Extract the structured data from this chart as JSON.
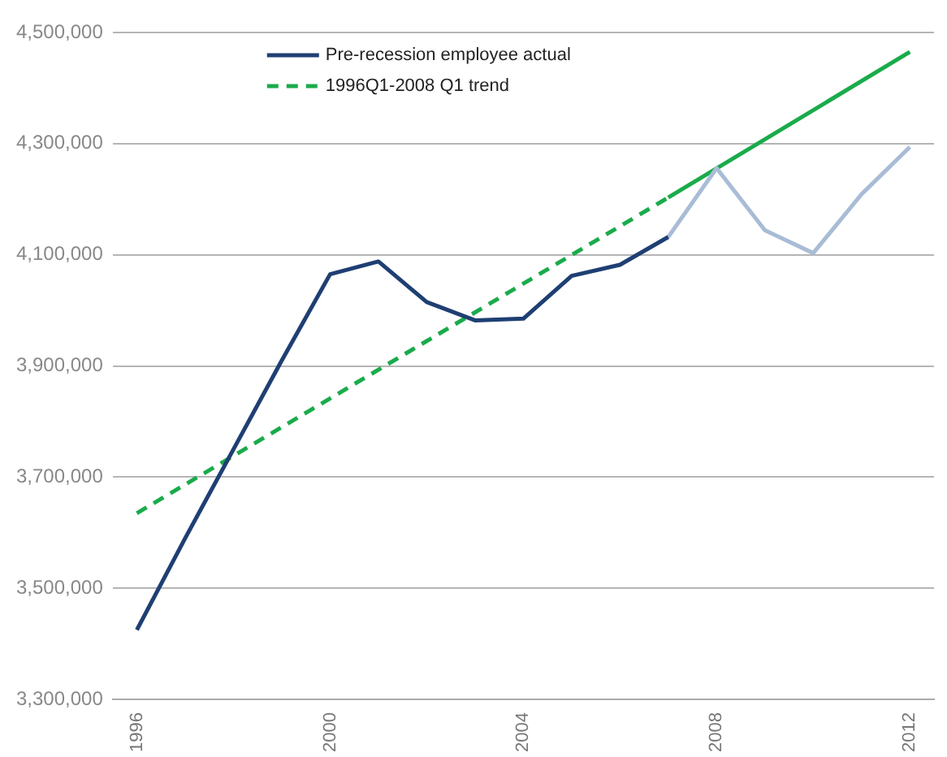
{
  "chart_data": {
    "type": "line",
    "categories": [
      "1996",
      null,
      null,
      null,
      "2000",
      null,
      null,
      null,
      "2004",
      null,
      null,
      null,
      "2008",
      null,
      null,
      null,
      "2012"
    ],
    "series": [
      {
        "name": "Pre-recession employee actual",
        "color": "#1f3f73",
        "line_style": "solid",
        "values": [
          3425000,
          3590000,
          3750000,
          3910000,
          4065000,
          4088000,
          4015000,
          3982000,
          3985000,
          4062000,
          4082000,
          4132000,
          null,
          null,
          null,
          null,
          null
        ]
      },
      {
        "color": "#a9bcd6",
        "line_style": "solid",
        "values": [
          null,
          null,
          null,
          null,
          null,
          null,
          null,
          null,
          null,
          null,
          null,
          4132000,
          4256000,
          4144000,
          4103000,
          4209000,
          4294000
        ]
      },
      {
        "name": "1996Q1-2008 Q1 trend",
        "color": "#1aab4b",
        "line_style": "dashed",
        "values": [
          3635000,
          null,
          null,
          null,
          null,
          null,
          null,
          null,
          null,
          null,
          null,
          4203000,
          null,
          null,
          null,
          null,
          null
        ]
      },
      {
        "color": "#1aab4b",
        "line_style": "solid",
        "values": [
          null,
          null,
          null,
          null,
          null,
          null,
          null,
          null,
          null,
          null,
          null,
          4203000,
          null,
          null,
          null,
          null,
          4465000
        ]
      }
    ],
    "ylim": [
      3300000,
      4500000
    ],
    "yticks": [
      {
        "value": 3300000,
        "label": "3,300,000"
      },
      {
        "value": 3500000,
        "label": "3,500,000"
      },
      {
        "value": 3700000,
        "label": "3,700,000"
      },
      {
        "value": 3900000,
        "label": "3,900,000"
      },
      {
        "value": 4100000,
        "label": "4,100,000"
      },
      {
        "value": 4300000,
        "label": "4,300,000"
      },
      {
        "value": 4500000,
        "label": "4,500,000"
      }
    ],
    "grid": "y",
    "legend": "top left",
    "marker": "none"
  }
}
